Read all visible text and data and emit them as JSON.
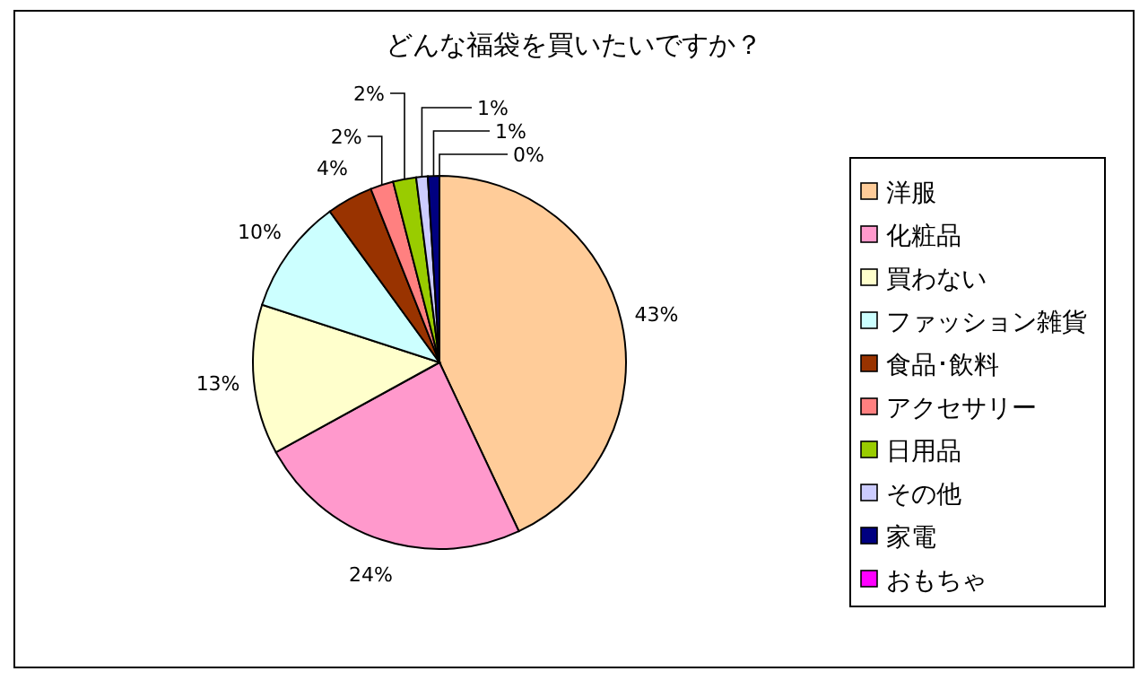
{
  "chart_data": {
    "type": "pie",
    "title": "どんな福袋を買いたいですか？",
    "categories": [
      "洋服",
      "化粧品",
      "買わない",
      "ファッション雑貨",
      "食品･飲料",
      "アクセサリー",
      "日用品",
      "その他",
      "家電",
      "おもちゃ"
    ],
    "values": [
      43,
      24,
      13,
      10,
      4,
      2,
      2,
      1,
      1,
      0
    ],
    "colors": [
      "#ffcc99",
      "#ff99cc",
      "#ffffcc",
      "#ccffff",
      "#993300",
      "#ff8080",
      "#99cc00",
      "#ccccff",
      "#000080",
      "#ff00ff"
    ],
    "value_labels": [
      "43%",
      "24%",
      "13%",
      "10%",
      "4%",
      "2%",
      "2%",
      "1%",
      "1%",
      "0%"
    ],
    "legend": "right"
  }
}
